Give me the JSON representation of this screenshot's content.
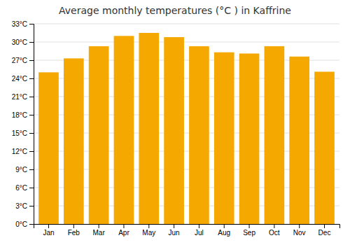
{
  "chart_data": {
    "type": "bar",
    "title": "Average monthly temperatures (°C ) in Kaffrine",
    "categories": [
      "Jan",
      "Feb",
      "Mar",
      "Apr",
      "May",
      "Jun",
      "Jul",
      "Aug",
      "Sep",
      "Oct",
      "Nov",
      "Dec"
    ],
    "values": [
      25.0,
      27.3,
      29.3,
      31.0,
      31.5,
      30.8,
      29.3,
      28.3,
      28.1,
      29.3,
      27.6,
      25.1
    ],
    "color": "#F5A800",
    "ylim": [
      0,
      33
    ],
    "yticks": [
      {
        "value": 0,
        "label": "0°C"
      },
      {
        "value": 3,
        "label": "3°C"
      },
      {
        "value": 6,
        "label": "6°C"
      },
      {
        "value": 9,
        "label": "9°C"
      },
      {
        "value": 12,
        "label": "12°C"
      },
      {
        "value": 15,
        "label": "15°C"
      },
      {
        "value": 18,
        "label": "18°C"
      },
      {
        "value": 21,
        "label": "21°C"
      },
      {
        "value": 24,
        "label": "24°C"
      },
      {
        "value": 27,
        "label": "27°C"
      },
      {
        "value": 30,
        "label": "30°C"
      },
      {
        "value": 33,
        "label": "33°C"
      }
    ],
    "grid": true
  }
}
